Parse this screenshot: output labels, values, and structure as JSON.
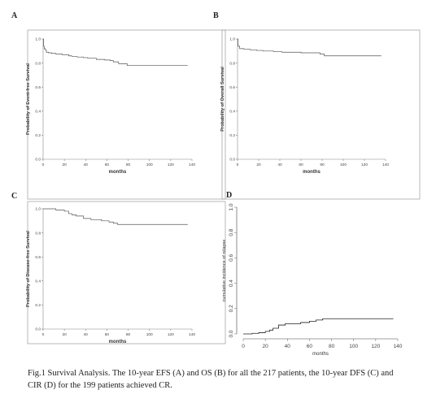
{
  "caption": "Fig.1   Survival Analysis. The 10-year EFS (A) and OS (B) for all the 217 patients, the 10-year DFS (C) and CIR (D) for the 199 patients achieved CR.",
  "chart_data": [
    {
      "panel": "A",
      "type": "line",
      "style": "step",
      "xlabel": "months",
      "ylabel": "Probability of Event-free Survival",
      "xticks": [
        0,
        20,
        40,
        60,
        80,
        100,
        120,
        140
      ],
      "yticks": [
        "0.0",
        "0.2",
        "0.4",
        "0.6",
        "0.8",
        "1.0"
      ],
      "xlim": [
        0,
        140
      ],
      "ylim": [
        0,
        1.0
      ],
      "grid": false,
      "series": [
        {
          "x": [
            0,
            0.5,
            0.5,
            1,
            1,
            2,
            2,
            3,
            3,
            5,
            5,
            8,
            8,
            12,
            12,
            18,
            18,
            24,
            24,
            27,
            27,
            32,
            32,
            38,
            38,
            42,
            42,
            50,
            50,
            58,
            58,
            63,
            63,
            66,
            66,
            71,
            71,
            79,
            79,
            136
          ],
          "y": [
            1.0,
            1.0,
            0.94,
            0.94,
            0.92,
            0.92,
            0.91,
            0.91,
            0.89,
            0.89,
            0.885,
            0.885,
            0.88,
            0.88,
            0.875,
            0.875,
            0.87,
            0.87,
            0.86,
            0.86,
            0.855,
            0.855,
            0.85,
            0.85,
            0.845,
            0.845,
            0.84,
            0.84,
            0.83,
            0.83,
            0.825,
            0.825,
            0.82,
            0.82,
            0.81,
            0.81,
            0.795,
            0.795,
            0.78,
            0.78
          ]
        }
      ]
    },
    {
      "panel": "B",
      "type": "line",
      "style": "step",
      "xlabel": "months",
      "ylabel": "Probability of Overall Survival",
      "xticks": [
        0,
        20,
        40,
        60,
        80,
        100,
        120,
        140
      ],
      "yticks": [
        "0.0",
        "0.2",
        "0.4",
        "0.6",
        "0.8",
        "1.0"
      ],
      "xlim": [
        0,
        140
      ],
      "ylim": [
        0,
        1.0
      ],
      "grid": false,
      "series": [
        {
          "x": [
            0,
            0.5,
            0.5,
            2,
            2,
            6,
            6,
            12,
            12,
            18,
            18,
            24,
            24,
            34,
            34,
            42,
            42,
            60,
            60,
            78,
            78,
            82,
            82,
            136
          ],
          "y": [
            1.0,
            1.0,
            0.94,
            0.94,
            0.92,
            0.92,
            0.915,
            0.915,
            0.91,
            0.91,
            0.905,
            0.905,
            0.9,
            0.9,
            0.895,
            0.895,
            0.89,
            0.89,
            0.885,
            0.885,
            0.875,
            0.875,
            0.86,
            0.86
          ]
        }
      ]
    },
    {
      "panel": "C",
      "type": "line",
      "style": "step",
      "xlabel": "months",
      "ylabel": "Probability of Disease-free Survival",
      "xticks": [
        0,
        20,
        40,
        60,
        80,
        100,
        120,
        140
      ],
      "yticks": [
        "0.0",
        "0.2",
        "0.4",
        "0.6",
        "0.8",
        "1.0"
      ],
      "xlim": [
        0,
        140
      ],
      "ylim": [
        0,
        1.0
      ],
      "grid": false,
      "series": [
        {
          "x": [
            0,
            12,
            12,
            20,
            20,
            24,
            24,
            27,
            27,
            31,
            31,
            38,
            38,
            45,
            45,
            55,
            55,
            62,
            62,
            66,
            66,
            70,
            70,
            78,
            78,
            136
          ],
          "y": [
            1.0,
            1.0,
            0.99,
            0.99,
            0.98,
            0.98,
            0.96,
            0.96,
            0.95,
            0.95,
            0.94,
            0.94,
            0.92,
            0.92,
            0.91,
            0.91,
            0.9,
            0.9,
            0.89,
            0.89,
            0.88,
            0.88,
            0.87,
            0.87,
            0.87,
            0.87
          ]
        }
      ]
    },
    {
      "panel": "D",
      "type": "line",
      "style": "step",
      "xlabel": "months",
      "ylabel": "cumulative incidence of relapse",
      "xticks": [
        0,
        20,
        40,
        60,
        80,
        100,
        120,
        140
      ],
      "yticks": [
        "0.0",
        "0.2",
        "0.4",
        "0.6",
        "0.8",
        "1.0"
      ],
      "xlim": [
        0,
        140
      ],
      "ylim": [
        0,
        1.0
      ],
      "grid": false,
      "series": [
        {
          "x": [
            0,
            8,
            8,
            14,
            14,
            20,
            20,
            24,
            24,
            27,
            27,
            32,
            32,
            38,
            38,
            52,
            52,
            60,
            60,
            66,
            66,
            72,
            72,
            76,
            76,
            136
          ],
          "y": [
            0.0,
            0.0,
            0.005,
            0.005,
            0.01,
            0.01,
            0.02,
            0.02,
            0.03,
            0.03,
            0.045,
            0.045,
            0.07,
            0.07,
            0.08,
            0.08,
            0.09,
            0.09,
            0.1,
            0.1,
            0.11,
            0.11,
            0.12,
            0.12,
            0.12,
            0.12
          ]
        }
      ]
    }
  ]
}
